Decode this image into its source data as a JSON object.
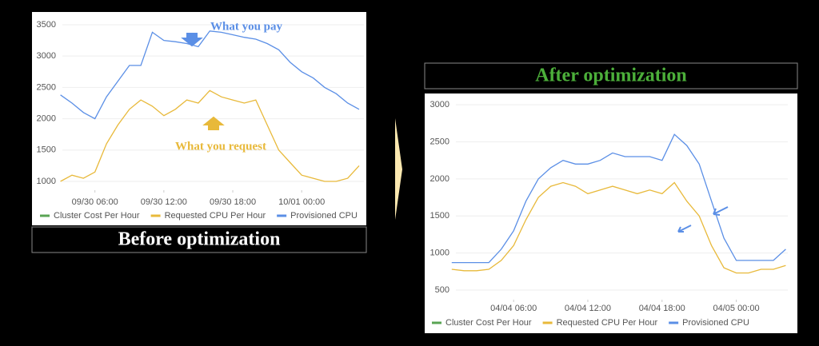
{
  "chart_data": [
    {
      "type": "line",
      "title": "Before optimization",
      "title_color": "#ffffff",
      "x": [
        "09/30 03:00",
        "09/30 04:00",
        "09/30 05:00",
        "09/30 06:00",
        "09/30 07:00",
        "09/30 08:00",
        "09/30 09:00",
        "09/30 10:00",
        "09/30 11:00",
        "09/30 12:00",
        "09/30 13:00",
        "09/30 14:00",
        "09/30 15:00",
        "09/30 16:00",
        "09/30 17:00",
        "09/30 18:00",
        "09/30 19:00",
        "09/30 20:00",
        "09/30 21:00",
        "09/30 22:00",
        "09/30 23:00",
        "10/01 00:00",
        "10/01 01:00",
        "10/01 02:00",
        "10/01 03:00",
        "10/01 04:00",
        "10/01 05:00"
      ],
      "series": [
        {
          "name": "Cluster Cost Per Hour",
          "color": "#5aa454",
          "values": [
            null,
            null,
            null,
            null,
            null,
            null,
            null,
            null,
            null,
            null,
            null,
            null,
            null,
            null,
            null,
            null,
            null,
            null,
            null,
            null,
            null,
            null,
            null,
            null,
            null,
            null,
            null
          ]
        },
        {
          "name": "Requested CPU Per Hour",
          "color": "#e8b93a",
          "values": [
            1000,
            1100,
            1050,
            1150,
            1600,
            1900,
            2150,
            2300,
            2200,
            2050,
            2150,
            2300,
            2250,
            2450,
            2350,
            2300,
            2250,
            2300,
            1900,
            1500,
            1300,
            1100,
            1050,
            1000,
            1000,
            1050,
            1250
          ]
        },
        {
          "name": "Provisioned CPU",
          "color": "#5b8fe6",
          "values": [
            2380,
            2250,
            2100,
            2000,
            2350,
            2600,
            2850,
            2850,
            3380,
            3250,
            3230,
            3200,
            3150,
            3400,
            3380,
            3340,
            3300,
            3270,
            3200,
            3100,
            2900,
            2750,
            2650,
            2500,
            2400,
            2250,
            2150
          ]
        }
      ],
      "xlim": [
        "09/30 03:10",
        "10/01 05:25"
      ],
      "xticks": [
        "09/30 06:00",
        "09/30 12:00",
        "09/30 18:00",
        "10/01 00:00"
      ],
      "ylim": [
        860,
        3640
      ],
      "yticks": [
        1000,
        1500,
        2000,
        2500,
        3000,
        3500
      ],
      "grid": true,
      "legend": "bottom",
      "annotations": [
        {
          "text": "What you pay",
          "color": "#5b8fe6"
        },
        {
          "text": "What you request",
          "color": "#e8b93a"
        }
      ]
    },
    {
      "type": "line",
      "title": "After optimization",
      "title_color": "#4caf3a",
      "x": [
        "04/04 01:00",
        "04/04 02:00",
        "04/04 03:00",
        "04/04 04:00",
        "04/04 05:00",
        "04/04 06:00",
        "04/04 07:00",
        "04/04 08:00",
        "04/04 09:00",
        "04/04 10:00",
        "04/04 11:00",
        "04/04 12:00",
        "04/04 13:00",
        "04/04 14:00",
        "04/04 15:00",
        "04/04 16:00",
        "04/04 17:00",
        "04/04 18:00",
        "04/04 19:00",
        "04/04 20:00",
        "04/04 21:00",
        "04/04 22:00",
        "04/04 23:00",
        "04/05 00:00",
        "04/05 01:00",
        "04/05 02:00",
        "04/05 03:00",
        "04/05 04:00"
      ],
      "series": [
        {
          "name": "Cluster Cost Per Hour",
          "color": "#5aa454",
          "values": [
            null,
            null,
            null,
            null,
            null,
            null,
            null,
            null,
            null,
            null,
            null,
            null,
            null,
            null,
            null,
            null,
            null,
            null,
            null,
            null,
            null,
            null,
            null,
            null,
            null,
            null,
            null,
            null
          ]
        },
        {
          "name": "Requested CPU Per Hour",
          "color": "#e8b93a",
          "values": [
            780,
            760,
            760,
            780,
            900,
            1100,
            1450,
            1750,
            1900,
            1950,
            1900,
            1800,
            1850,
            1900,
            1850,
            1800,
            1850,
            1800,
            1950,
            1700,
            1500,
            1100,
            800,
            730,
            730,
            780,
            780,
            830
          ]
        },
        {
          "name": "Provisioned CPU",
          "color": "#5b8fe6",
          "values": [
            870,
            870,
            870,
            870,
            1050,
            1300,
            1700,
            2000,
            2150,
            2250,
            2200,
            2200,
            2250,
            2350,
            2300,
            2300,
            2300,
            2250,
            2600,
            2450,
            2200,
            1700,
            1200,
            900,
            900,
            900,
            900,
            1050
          ]
        }
      ],
      "xlim": [
        "04/04 01:20",
        "04/05 04:10"
      ],
      "xticks": [
        "04/04 06:00",
        "04/04 12:00",
        "04/04 18:00",
        "04/05 00:00"
      ],
      "ylim": [
        370,
        3120
      ],
      "yticks": [
        500,
        1000,
        1500,
        2000,
        2500,
        3000
      ],
      "grid": true,
      "legend": "bottom"
    }
  ]
}
